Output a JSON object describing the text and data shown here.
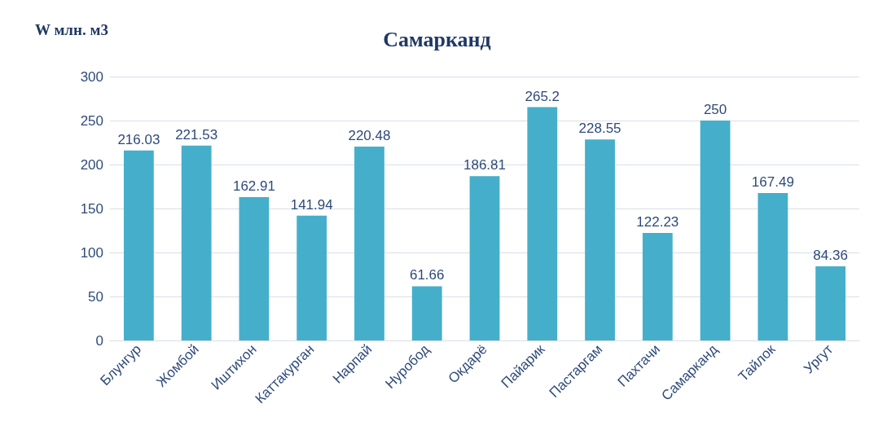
{
  "chart_data": {
    "type": "bar",
    "title": "Самарканд",
    "ylabel": "W млн. м3",
    "categories": [
      "Блунгур",
      "Жомбой",
      "Иштихон",
      "Каттакурган",
      "Нарпай",
      "Нуробод",
      "Окдарё",
      "Пайарик",
      "Пастаргам",
      "Пахтачи",
      "Самарканд",
      "Тайлок",
      "Ургут"
    ],
    "values": [
      216.03,
      221.53,
      162.91,
      141.94,
      220.48,
      61.66,
      186.81,
      265.2,
      228.55,
      122.23,
      250,
      167.49,
      84.36
    ],
    "color": "#45afcb",
    "ylim": [
      0,
      300
    ],
    "yticks": [
      0,
      50,
      100,
      150,
      200,
      250,
      300
    ],
    "grid": "y",
    "data_labels": true
  }
}
